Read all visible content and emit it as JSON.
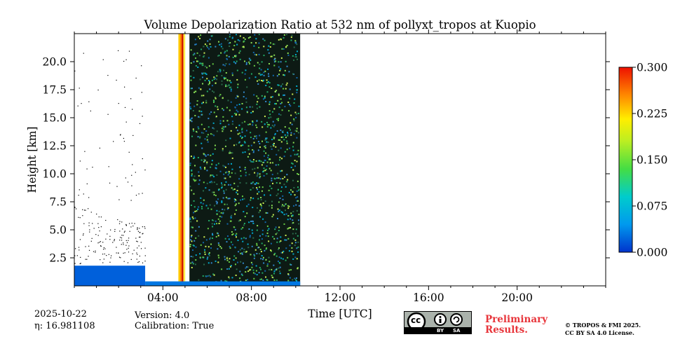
{
  "chart_data": {
    "type": "heatmap",
    "title": "Volume Depolarization Ratio at 532 nm of pollyxt_tropos at Kuopio",
    "xlabel": "Time [UTC]",
    "ylabel": "Height [km]",
    "xlim": [
      0,
      24
    ],
    "ylim": [
      0,
      22.5
    ],
    "x_ticks": [
      4,
      8,
      12,
      16,
      20
    ],
    "x_tick_labels": [
      "04:00",
      "08:00",
      "12:00",
      "16:00",
      "20:00"
    ],
    "y_ticks": [
      2.5,
      5.0,
      7.5,
      10.0,
      12.5,
      15.0,
      17.5,
      20.0
    ],
    "y_tick_labels": [
      "2.5",
      "5.0",
      "7.5",
      "10.0",
      "12.5",
      "15.0",
      "17.5",
      "20.0"
    ],
    "colorbar": {
      "min": 0.0,
      "max": 0.3,
      "ticks": [
        0.0,
        0.075,
        0.15,
        0.225,
        0.3
      ],
      "tick_labels": [
        "0.000",
        "0.075",
        "0.150",
        "0.225",
        "0.300"
      ]
    },
    "data_extent_hours": [
      0,
      10.2
    ],
    "regions": [
      {
        "name": "near-ground low-depol layer",
        "t_start": 0.0,
        "t_end": 3.2,
        "h_top": 1.8,
        "value": 0.02
      },
      {
        "name": "vertical depol streaks",
        "t_start": 4.7,
        "t_end": 5.0,
        "h_top": 22.5,
        "value": 0.22
      },
      {
        "name": "noisy high-depol signal",
        "t_start": 5.2,
        "t_end": 10.2,
        "h_top": 22.5,
        "value": 0.12
      },
      {
        "name": "surface layer",
        "t_start": 3.2,
        "t_end": 10.2,
        "h_top": 0.4,
        "value": 0.03
      }
    ]
  },
  "info": {
    "date": "2025-10-22",
    "eta_label": "η: 16.981108",
    "version": "Version: 4.0",
    "calibration": "Calibration: True"
  },
  "license": {
    "badge_text": "cc",
    "by": "BY",
    "sa": "SA",
    "prelim_line1": "Preliminary",
    "prelim_line2": "Results.",
    "copyright_line1": "© TROPOS & FMI 2025.",
    "copyright_line2": "CC BY SA 4.0 License."
  }
}
